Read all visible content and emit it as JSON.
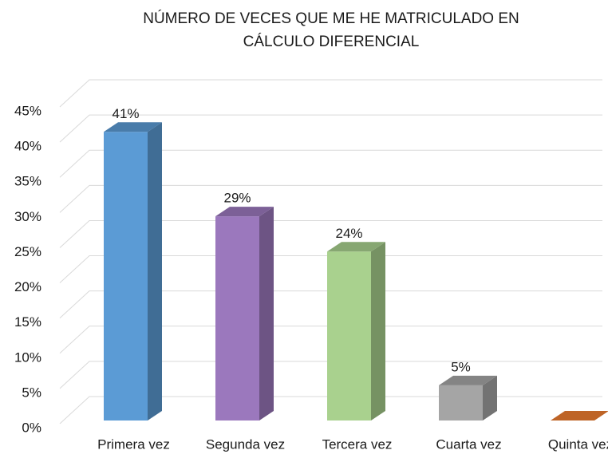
{
  "chart_data": {
    "type": "bar3d",
    "title": [
      "NÚMERO DE VECES QUE ME HE MATRICULADO  EN",
      "CÁLCULO  DIFERENCIAL"
    ],
    "categories": [
      "Primera vez",
      "Segunda vez",
      "Tercera vez",
      "Cuarta vez",
      "Quinta vez"
    ],
    "values": [
      41,
      29,
      24,
      5,
      0
    ],
    "value_labels": [
      "41%",
      "29%",
      "24%",
      "5%",
      null
    ],
    "colors": [
      "#5b9bd5",
      "#9b78bd",
      "#a9d18e",
      "#a5a5a5",
      "#ed7d31"
    ],
    "ylim": [
      0,
      45
    ],
    "yticks": [
      {
        "value": 0,
        "label": "0%"
      },
      {
        "value": 5,
        "label": "5%"
      },
      {
        "value": 10,
        "label": "10%"
      },
      {
        "value": 15,
        "label": "15%"
      },
      {
        "value": 20,
        "label": "20%"
      },
      {
        "value": 25,
        "label": "25%"
      },
      {
        "value": 30,
        "label": "30%"
      },
      {
        "value": 35,
        "label": "35%"
      },
      {
        "value": 40,
        "label": "40%"
      },
      {
        "value": 45,
        "label": "45%"
      }
    ],
    "grid": true
  }
}
